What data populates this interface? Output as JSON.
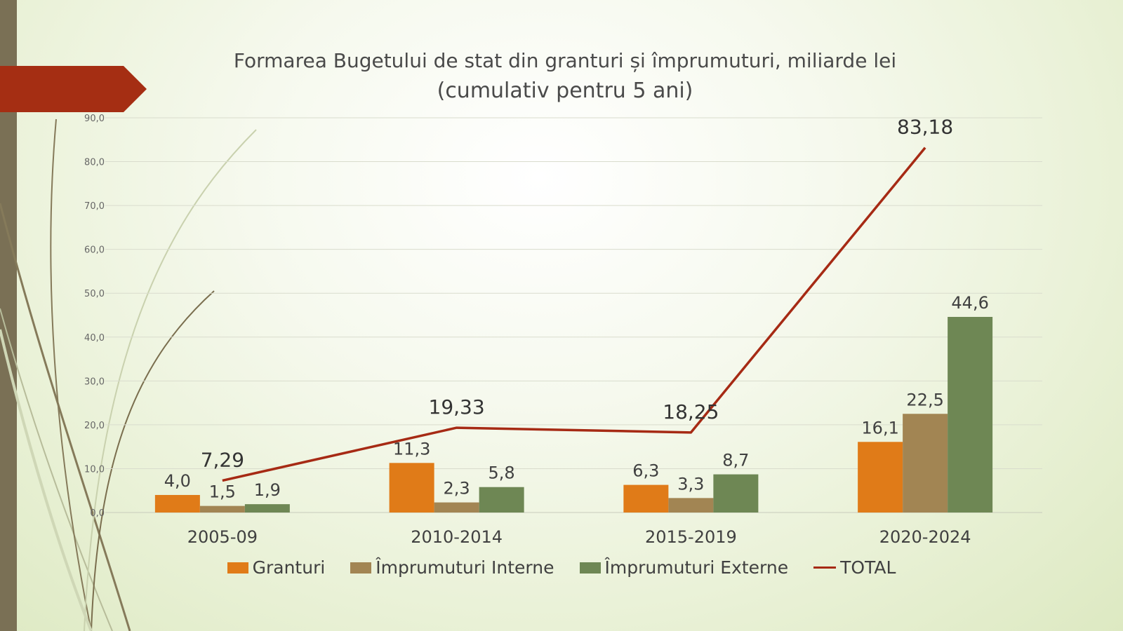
{
  "title_line1": "Formarea Bugetului de stat din granturi și împrumuturi, miliarde lei",
  "title_line2": "(cumulativ pentru 5 ani)",
  "chart_data": {
    "type": "bar",
    "categories": [
      "2005-09",
      "2010-2014",
      "2015-2019",
      "2020-2024"
    ],
    "series": [
      {
        "name": "Granturi",
        "kind": "bar",
        "color": "#e07b18",
        "values": [
          4.0,
          11.3,
          6.3,
          16.1
        ],
        "labels": [
          "4,0",
          "11,3",
          "6,3",
          "16,1"
        ]
      },
      {
        "name": "Împrumuturi Interne",
        "kind": "bar",
        "color": "#a28553",
        "values": [
          1.5,
          2.3,
          3.3,
          22.5
        ],
        "labels": [
          "1,5",
          "2,3",
          "3,3",
          "22,5"
        ]
      },
      {
        "name": "Împrumuturi Externe",
        "kind": "bar",
        "color": "#6e8754",
        "values": [
          1.9,
          5.8,
          8.7,
          44.6
        ],
        "labels": [
          "1,9",
          "5,8",
          "8,7",
          "44,6"
        ]
      },
      {
        "name": "TOTAL",
        "kind": "line",
        "color": "#a62a14",
        "values": [
          7.29,
          19.33,
          18.25,
          83.18
        ],
        "labels": [
          "7,29",
          "19,33",
          "18,25",
          "83,18"
        ]
      }
    ],
    "ylim": [
      0,
      90
    ],
    "yticks": [
      "0,0",
      "10,0",
      "20,0",
      "30,0",
      "40,0",
      "50,0",
      "60,0",
      "70,0",
      "80,0",
      "90,0"
    ],
    "grid": true,
    "legend_position": "bottom"
  }
}
